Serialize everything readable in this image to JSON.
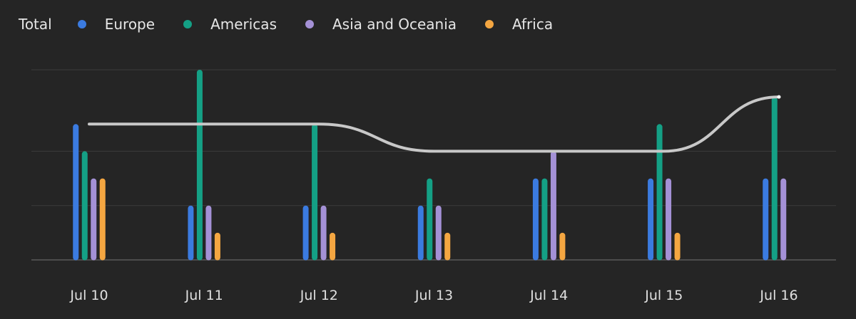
{
  "legend": {
    "total_label": "Total"
  },
  "chart_data": {
    "type": "bar",
    "categories": [
      "Jul 10",
      "Jul 11",
      "Jul 12",
      "Jul 13",
      "Jul 14",
      "Jul 15",
      "Jul 16"
    ],
    "series": [
      {
        "name": "Europe",
        "color": "#3b7be0",
        "values": [
          5,
          2,
          2,
          2,
          3,
          3,
          3
        ]
      },
      {
        "name": "Americas",
        "color": "#14a085",
        "values": [
          4,
          7,
          5,
          3,
          3,
          5,
          6
        ]
      },
      {
        "name": "Asia and Oceania",
        "color": "#a491d6",
        "values": [
          3,
          2,
          2,
          2,
          4,
          3,
          3
        ]
      },
      {
        "name": "Africa",
        "color": "#f4a641",
        "values": [
          3,
          1,
          1,
          1,
          1,
          1,
          0
        ]
      }
    ],
    "line_series": {
      "name": "Total",
      "color": "#c8c8c8",
      "values": [
        5,
        5,
        5,
        4,
        4,
        4,
        6
      ]
    },
    "ylim": [
      0,
      7
    ],
    "gridlines": [
      0,
      2,
      4,
      7
    ],
    "grid": true,
    "legend_position": "top-left",
    "title": "",
    "xlabel": "",
    "ylabel": ""
  }
}
